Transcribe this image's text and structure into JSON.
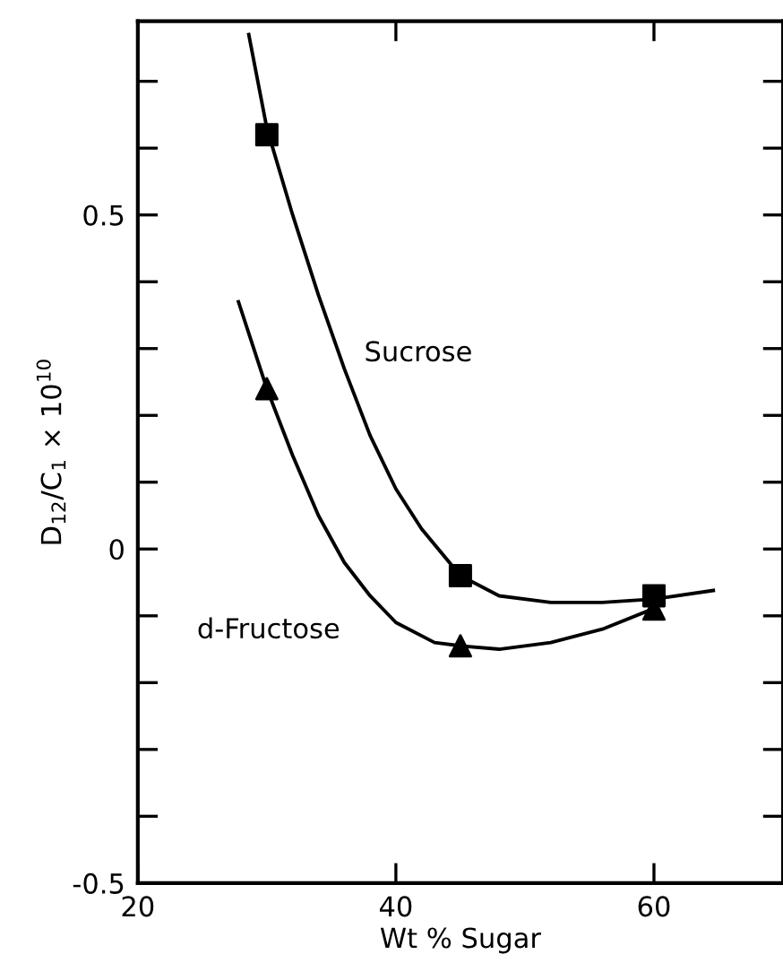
{
  "chart_data": {
    "type": "line",
    "xlabel": "Wt % Sugar",
    "ylabel": "D$_{12}$/C$_{1}$ × 10$^{10}$",
    "xlim": [
      20,
      70
    ],
    "ylim": [
      -0.5,
      0.79
    ],
    "xticks": [
      20,
      40,
      60
    ],
    "yticks": [
      {
        "value": -0.5,
        "label": "-0.5"
      },
      {
        "value": -0.4,
        "label": null
      },
      {
        "value": -0.3,
        "label": null
      },
      {
        "value": -0.2,
        "label": null
      },
      {
        "value": -0.1,
        "label": null
      },
      0,
      {
        "value": 0.1,
        "label": null
      },
      {
        "value": 0.2,
        "label": null
      },
      {
        "value": 0.3,
        "label": null
      },
      {
        "value": 0.4,
        "label": null
      },
      0.5,
      {
        "value": 0.6,
        "label": null
      },
      {
        "value": 0.7,
        "label": null
      }
    ],
    "grid": false,
    "legend": false,
    "series": [
      {
        "name": "Sucrose",
        "color": "#000000",
        "marker": "none",
        "line_style": "solid",
        "x": [
          28.6,
          30,
          32,
          34,
          36,
          38,
          40,
          42,
          45,
          48,
          52,
          56,
          60,
          64.6
        ],
        "values": [
          0.77,
          0.63,
          0.5,
          0.38,
          0.27,
          0.17,
          0.09,
          0.03,
          -0.04,
          -0.07,
          -0.08,
          -0.08,
          -0.075,
          -0.062
        ]
      },
      {
        "name": "d-Fructose",
        "color": "#000000",
        "marker": "none",
        "line_style": "solid",
        "x": [
          27.8,
          30,
          32,
          34,
          36,
          38,
          40,
          43,
          45,
          48,
          52,
          56,
          60
        ],
        "values": [
          0.37,
          0.24,
          0.14,
          0.05,
          -0.02,
          -0.07,
          -0.11,
          -0.14,
          -0.145,
          -0.15,
          -0.14,
          -0.12,
          -0.089
        ]
      },
      {
        "type": "scatter",
        "color": "#000000",
        "marker": "square",
        "x": [
          30,
          45,
          60
        ],
        "values": [
          0.62,
          -0.04,
          -0.07
        ]
      },
      {
        "type": "scatter",
        "color": "#000000",
        "marker": "triangle",
        "x": [
          30,
          45,
          60
        ],
        "values": [
          0.24,
          -0.145,
          -0.09
        ]
      }
    ]
  }
}
